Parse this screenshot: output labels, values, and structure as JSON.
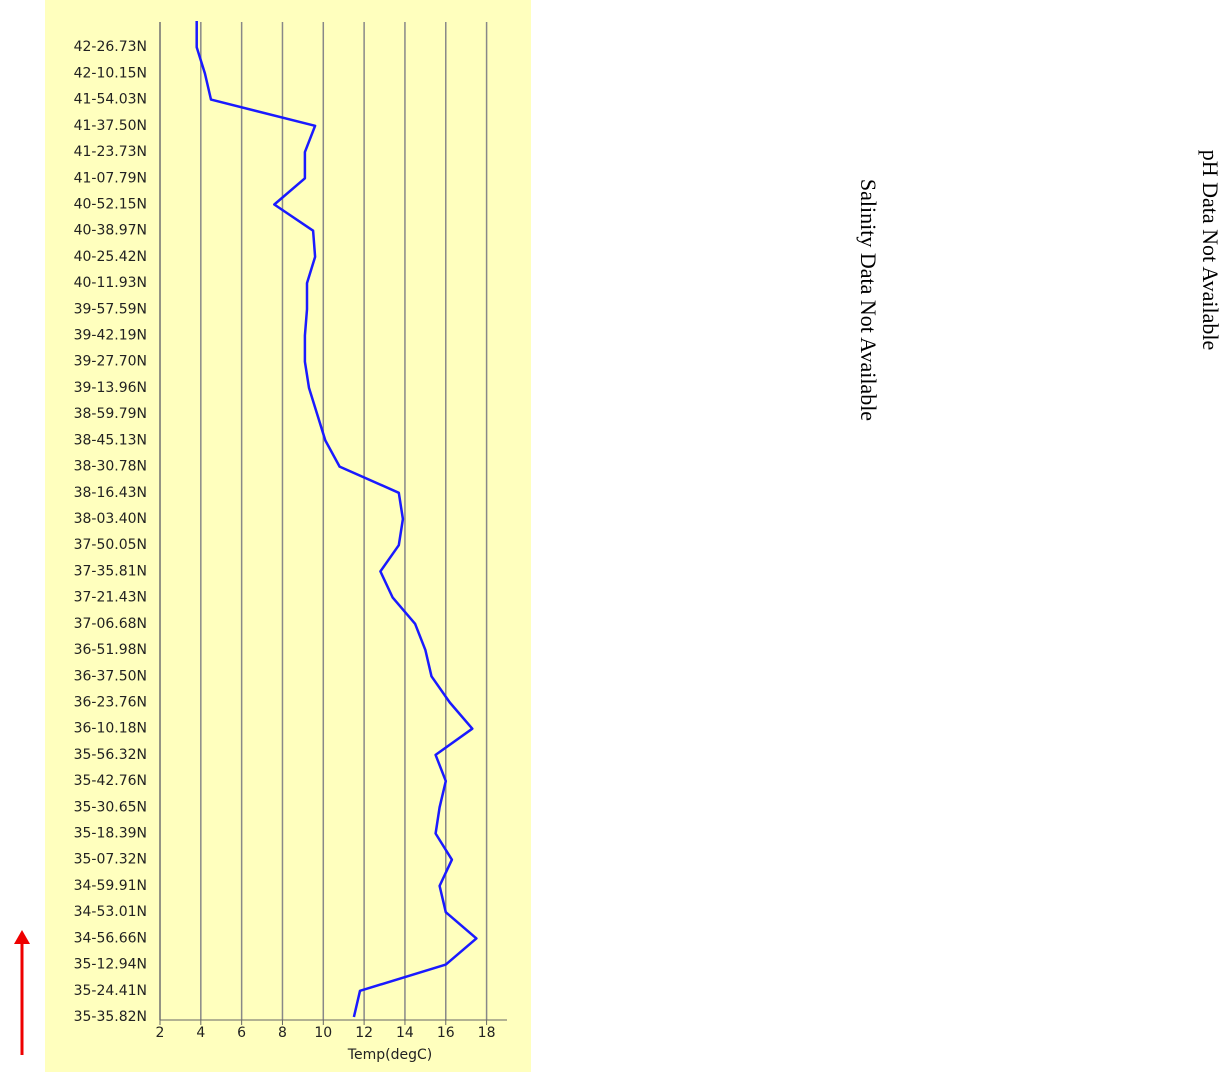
{
  "chart_data": {
    "type": "line",
    "orientation": "horizontal",
    "categories": [
      null,
      "42-26.73N",
      "42-10.15N",
      "41-54.03N",
      "41-37.50N",
      "41-23.73N",
      "41-07.79N",
      "40-52.15N",
      "40-38.97N",
      "40-25.42N",
      "40-11.93N",
      "39-57.59N",
      "39-42.19N",
      "39-27.70N",
      "39-13.96N",
      "38-59.79N",
      "38-45.13N",
      "38-30.78N",
      "38-16.43N",
      "38-03.40N",
      "37-50.05N",
      "37-35.81N",
      "37-21.43N",
      "37-06.68N",
      "36-51.98N",
      "36-37.50N",
      "36-23.76N",
      "36-10.18N",
      "35-56.32N",
      "35-42.76N",
      "35-30.65N",
      "35-18.39N",
      "35-07.32N",
      "34-59.91N",
      "34-53.01N",
      "34-56.66N",
      "35-12.94N",
      "35-24.41N",
      "35-35.82N"
    ],
    "values": [
      3.8,
      3.8,
      4.2,
      4.5,
      9.6,
      9.1,
      9.1,
      7.6,
      9.5,
      9.6,
      9.2,
      9.2,
      9.1,
      9.1,
      9.3,
      9.7,
      10.1,
      10.8,
      13.7,
      13.9,
      13.7,
      12.8,
      13.4,
      14.5,
      15.0,
      15.3,
      16.2,
      17.3,
      15.5,
      16.0,
      15.7,
      15.5,
      16.3,
      15.7,
      16.0,
      17.5,
      16.0,
      11.8,
      11.5
    ],
    "color": "#1a1aff",
    "xlim": [
      2,
      19
    ],
    "xticks": [
      2,
      4,
      6,
      8,
      10,
      12,
      14,
      16,
      18
    ],
    "xlabel": "Temp(degC)",
    "grid": true
  },
  "messages": [
    "Salinity Data Not Available",
    "pH Data Not Available"
  ]
}
